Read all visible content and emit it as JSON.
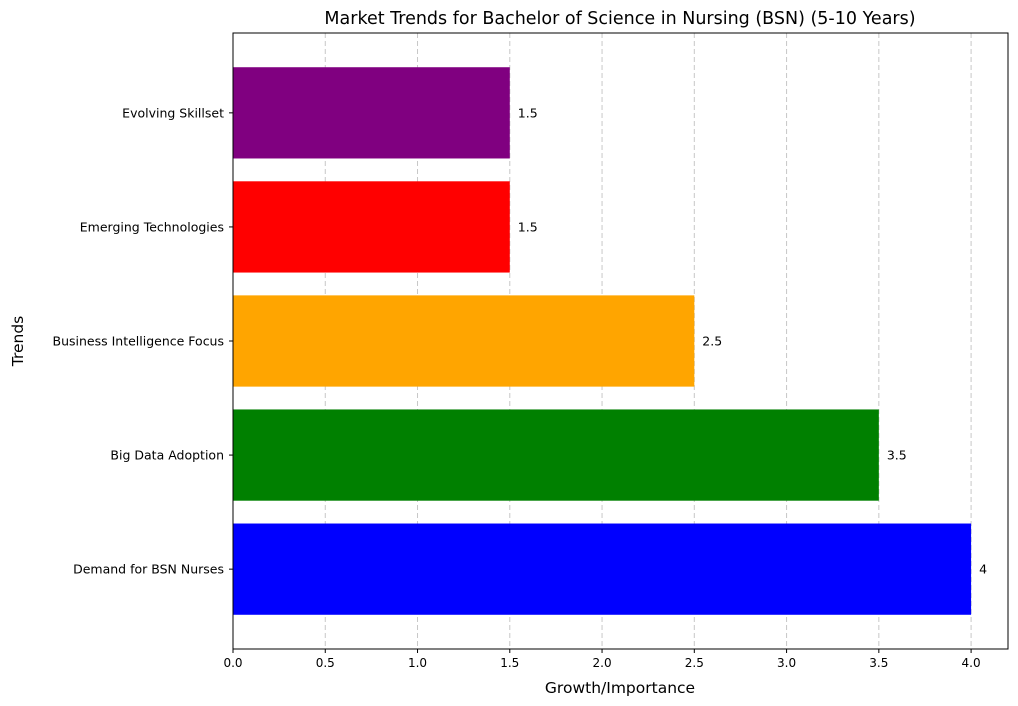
{
  "chart_data": {
    "type": "bar",
    "orientation": "horizontal",
    "title": "Market Trends for Bachelor of Science in Nursing (BSN) (5-10 Years)",
    "xlabel": "Growth/Importance",
    "ylabel": "Trends",
    "categories": [
      "Demand for BSN Nurses",
      "Big Data Adoption",
      "Business Intelligence Focus",
      "Emerging Technologies",
      "Evolving Skillset"
    ],
    "values": [
      4,
      3.5,
      2.5,
      1.5,
      1.5
    ],
    "value_labels": [
      "4",
      "3.5",
      "2.5",
      "1.5",
      "1.5"
    ],
    "colors": [
      "#0000ff",
      "#008000",
      "#ffa500",
      "#ff0000",
      "#800080"
    ],
    "xlim": [
      0,
      4.2
    ],
    "xticks": [
      0,
      0.5,
      1,
      1.5,
      2,
      2.5,
      3,
      3.5,
      4
    ],
    "xtick_labels": [
      "0.0",
      "0.5",
      "1.0",
      "1.5",
      "2.0",
      "2.5",
      "3.0",
      "3.5",
      "4.0"
    ],
    "grid": "x-dashed",
    "legend": "none"
  }
}
